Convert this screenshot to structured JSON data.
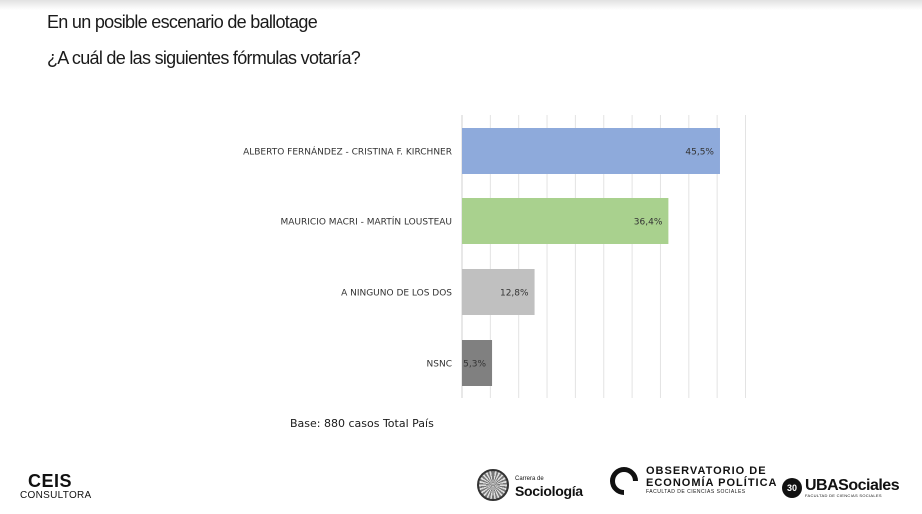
{
  "header": {
    "title_line1": "En un posible escenario de ballotage",
    "title_line2": "¿A cuál de las siguientes fórmulas votaría?"
  },
  "footnote": "Base: 880 casos Total País",
  "logos": {
    "ceis": {
      "main": "CEIS",
      "sub": "CONSULTORA"
    },
    "sociologia": {
      "small": "Carrera de",
      "big": "Sociología"
    },
    "observatorio": {
      "line1": "OBSERVATORIO DE",
      "line2": "ECONOMÍA POLÍTICA",
      "line3": "FACULTAD DE CIENCIAS SOCIALES"
    },
    "uba": {
      "badge": "30",
      "main": "UBASociales",
      "sub": "FACULTAD DE CIENCIAS SOCIALES"
    }
  },
  "chart_data": {
    "type": "bar",
    "orientation": "horizontal",
    "title": "",
    "xlabel": "",
    "ylabel": "",
    "xlim": [
      0,
      50
    ],
    "grid": true,
    "categories": [
      "ALBERTO FERNÁNDEZ - CRISTINA F. KIRCHNER",
      "MAURICIO MACRI - MARTÍN LOUSTEAU",
      "A NINGUNO DE LOS DOS",
      "NSNC"
    ],
    "values": [
      45.5,
      36.4,
      12.8,
      5.3
    ],
    "data_labels": [
      "45,5%",
      "36,4%",
      "12,8%",
      "5,3%"
    ],
    "colors": [
      "#8eaadb",
      "#a9d18e",
      "#c0c0c0",
      "#808080"
    ]
  }
}
